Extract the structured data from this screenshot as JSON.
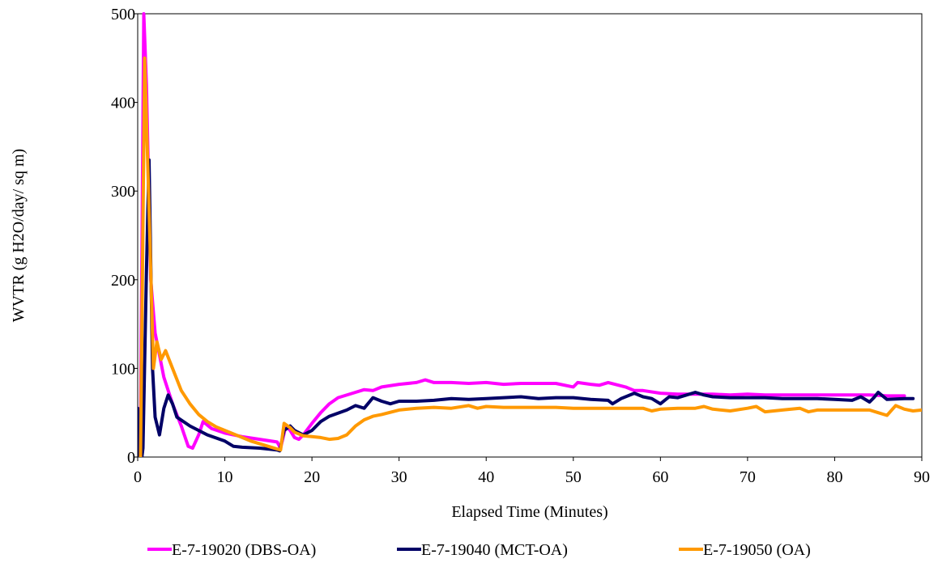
{
  "chart_data": {
    "type": "line",
    "title": "",
    "xlabel": "Elapsed Time (Minutes)",
    "ylabel": "WVTR (g H2O/day/ sq m)",
    "xlim": [
      0,
      90
    ],
    "ylim": [
      0,
      500
    ],
    "xticks": [
      0,
      10,
      20,
      30,
      40,
      50,
      60,
      70,
      80,
      90
    ],
    "yticks": [
      0,
      100,
      200,
      300,
      400,
      500
    ],
    "xtick_labels": [
      "0",
      "10",
      "20",
      "30",
      "40",
      "50",
      "60",
      "70",
      "80",
      "90"
    ],
    "ytick_labels": [
      "0",
      "100",
      "200",
      "300",
      "400",
      "500"
    ],
    "grid": false,
    "legend_position": "bottom",
    "series": [
      {
        "name": "E-7-19020 (DBS-OA)",
        "color": "#ff00ff",
        "points": [
          [
            0,
            -15
          ],
          [
            0.3,
            -5
          ],
          [
            0.7,
            500
          ],
          [
            1.0,
            420
          ],
          [
            1.5,
            200
          ],
          [
            2,
            140
          ],
          [
            3,
            90
          ],
          [
            4,
            60
          ],
          [
            5,
            35
          ],
          [
            5.8,
            12
          ],
          [
            6.3,
            10
          ],
          [
            7,
            25
          ],
          [
            7.5,
            40
          ],
          [
            8.5,
            32
          ],
          [
            10,
            27
          ],
          [
            12,
            23
          ],
          [
            14,
            20
          ],
          [
            16,
            17
          ],
          [
            16.4,
            10
          ],
          [
            17,
            35
          ],
          [
            17.5,
            30
          ],
          [
            18,
            22
          ],
          [
            18.5,
            20
          ],
          [
            19,
            25
          ],
          [
            20,
            38
          ],
          [
            21,
            50
          ],
          [
            22,
            60
          ],
          [
            23,
            67
          ],
          [
            25,
            73
          ],
          [
            26,
            76
          ],
          [
            27,
            75
          ],
          [
            28,
            79
          ],
          [
            30,
            82
          ],
          [
            32,
            84
          ],
          [
            33,
            87
          ],
          [
            34,
            84
          ],
          [
            36,
            84
          ],
          [
            38,
            83
          ],
          [
            40,
            84
          ],
          [
            42,
            82
          ],
          [
            44,
            83
          ],
          [
            46,
            83
          ],
          [
            48,
            83
          ],
          [
            50,
            79
          ],
          [
            50.5,
            84
          ],
          [
            52,
            82
          ],
          [
            53,
            81
          ],
          [
            54,
            84
          ],
          [
            56,
            79
          ],
          [
            57,
            75
          ],
          [
            58,
            75
          ],
          [
            60,
            72
          ],
          [
            62,
            71
          ],
          [
            64,
            71
          ],
          [
            66,
            71
          ],
          [
            68,
            70
          ],
          [
            70,
            71
          ],
          [
            72,
            70
          ],
          [
            74,
            70
          ],
          [
            76,
            70
          ],
          [
            78,
            70
          ],
          [
            80,
            70
          ],
          [
            82,
            70
          ],
          [
            84,
            70
          ],
          [
            86,
            69
          ],
          [
            88,
            69
          ]
        ]
      },
      {
        "name": "E-7-19040 (MCT-OA)",
        "color": "#000066",
        "points": [
          [
            0,
            55
          ],
          [
            0.3,
            -15
          ],
          [
            0.6,
            10
          ],
          [
            1.0,
            210
          ],
          [
            1.3,
            335
          ],
          [
            1.7,
            100
          ],
          [
            2,
            45
          ],
          [
            2.5,
            25
          ],
          [
            3,
            55
          ],
          [
            3.5,
            70
          ],
          [
            4,
            60
          ],
          [
            4.5,
            45
          ],
          [
            6,
            35
          ],
          [
            8,
            25
          ],
          [
            10,
            18
          ],
          [
            11,
            12
          ],
          [
            12,
            11
          ],
          [
            14,
            10
          ],
          [
            16,
            8
          ],
          [
            16.3,
            7
          ],
          [
            16.8,
            30
          ],
          [
            17.5,
            35
          ],
          [
            18,
            30
          ],
          [
            19,
            25
          ],
          [
            20,
            30
          ],
          [
            21,
            40
          ],
          [
            22,
            46
          ],
          [
            24,
            53
          ],
          [
            25,
            58
          ],
          [
            26,
            55
          ],
          [
            27,
            67
          ],
          [
            28,
            63
          ],
          [
            29,
            60
          ],
          [
            30,
            63
          ],
          [
            32,
            63
          ],
          [
            34,
            64
          ],
          [
            36,
            66
          ],
          [
            38,
            65
          ],
          [
            40,
            66
          ],
          [
            42,
            67
          ],
          [
            44,
            68
          ],
          [
            46,
            66
          ],
          [
            48,
            67
          ],
          [
            50,
            67
          ],
          [
            52,
            65
          ],
          [
            54,
            64
          ],
          [
            54.5,
            60
          ],
          [
            55.5,
            66
          ],
          [
            57,
            72
          ],
          [
            58,
            68
          ],
          [
            59,
            66
          ],
          [
            60,
            60
          ],
          [
            61,
            68
          ],
          [
            62,
            67
          ],
          [
            63,
            70
          ],
          [
            64,
            73
          ],
          [
            65,
            70
          ],
          [
            66,
            68
          ],
          [
            68,
            67
          ],
          [
            70,
            67
          ],
          [
            72,
            67
          ],
          [
            74,
            66
          ],
          [
            76,
            66
          ],
          [
            78,
            66
          ],
          [
            80,
            65
          ],
          [
            82,
            64
          ],
          [
            83,
            68
          ],
          [
            84,
            62
          ],
          [
            84.5,
            67
          ],
          [
            85,
            73
          ],
          [
            86,
            65
          ],
          [
            88,
            66
          ],
          [
            89,
            66
          ]
        ]
      },
      {
        "name": "E-7-19050 (OA)",
        "color": "#ff9900",
        "points": [
          [
            0,
            -20
          ],
          [
            0.3,
            -25
          ],
          [
            0.8,
            450
          ],
          [
            1.3,
            280
          ],
          [
            1.8,
            100
          ],
          [
            2.2,
            130
          ],
          [
            2.7,
            110
          ],
          [
            3.2,
            120
          ],
          [
            4,
            100
          ],
          [
            5,
            75
          ],
          [
            6,
            60
          ],
          [
            7,
            48
          ],
          [
            8,
            40
          ],
          [
            9,
            34
          ],
          [
            10,
            30
          ],
          [
            11,
            26
          ],
          [
            12,
            22
          ],
          [
            13,
            18
          ],
          [
            14,
            15
          ],
          [
            15,
            12
          ],
          [
            16,
            9
          ],
          [
            16.4,
            8
          ],
          [
            16.8,
            38
          ],
          [
            17.5,
            33
          ],
          [
            18,
            28
          ],
          [
            19,
            24
          ],
          [
            20,
            23
          ],
          [
            21,
            22
          ],
          [
            22,
            20
          ],
          [
            23,
            21
          ],
          [
            24,
            25
          ],
          [
            25,
            35
          ],
          [
            26,
            42
          ],
          [
            27,
            46
          ],
          [
            28,
            48
          ],
          [
            30,
            53
          ],
          [
            32,
            55
          ],
          [
            34,
            56
          ],
          [
            36,
            55
          ],
          [
            38,
            58
          ],
          [
            39,
            55
          ],
          [
            40,
            57
          ],
          [
            42,
            56
          ],
          [
            44,
            56
          ],
          [
            46,
            56
          ],
          [
            48,
            56
          ],
          [
            50,
            55
          ],
          [
            52,
            55
          ],
          [
            54,
            55
          ],
          [
            56,
            55
          ],
          [
            58,
            55
          ],
          [
            59,
            52
          ],
          [
            60,
            54
          ],
          [
            62,
            55
          ],
          [
            64,
            55
          ],
          [
            65,
            57
          ],
          [
            66,
            54
          ],
          [
            68,
            52
          ],
          [
            70,
            55
          ],
          [
            71,
            57
          ],
          [
            72,
            51
          ],
          [
            74,
            53
          ],
          [
            76,
            55
          ],
          [
            77,
            51
          ],
          [
            78,
            53
          ],
          [
            80,
            53
          ],
          [
            82,
            53
          ],
          [
            84,
            53
          ],
          [
            85,
            50
          ],
          [
            86,
            47
          ],
          [
            87,
            58
          ],
          [
            88,
            54
          ],
          [
            89,
            52
          ],
          [
            90,
            53
          ]
        ]
      }
    ]
  }
}
